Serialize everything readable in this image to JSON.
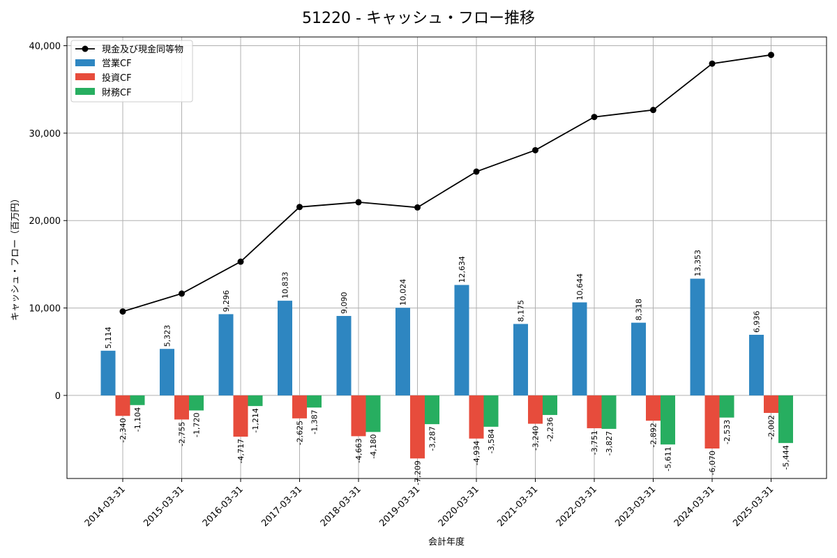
{
  "chart_data": {
    "type": "bar",
    "title": "51220 - キャッシュ・フロー推移",
    "xlabel": "会計年度",
    "ylabel": "キャッシュ・フロー（百万円）",
    "ylim": [
      -9500,
      41000
    ],
    "yticks": [
      0,
      10000,
      20000,
      30000,
      40000
    ],
    "ytick_labels": [
      "0",
      "10,000",
      "20,000",
      "30,000",
      "40,000"
    ],
    "grid": true,
    "legend": "top-left",
    "categories": [
      "2014-03-31",
      "2015-03-31",
      "2016-03-31",
      "2017-03-31",
      "2018-03-31",
      "2019-03-31",
      "2020-03-31",
      "2021-03-31",
      "2022-03-31",
      "2023-03-31",
      "2024-03-31",
      "2025-03-31"
    ],
    "series": [
      {
        "name": "営業CF",
        "kind": "bar",
        "color": "#2e86c1",
        "values": [
          5114,
          5323,
          9296,
          10833,
          9090,
          10024,
          12634,
          8175,
          10644,
          8318,
          13353,
          6936
        ],
        "labels": [
          "5,114",
          "5,323",
          "9,296",
          "10,833",
          "9,090",
          "10,024",
          "12,634",
          "8,175",
          "10,644",
          "8,318",
          "13,353",
          "6,936"
        ]
      },
      {
        "name": "投資CF",
        "kind": "bar",
        "color": "#e74c3c",
        "values": [
          -2340,
          -2755,
          -4717,
          -2625,
          -4663,
          -7209,
          -4934,
          -3240,
          -3751,
          -2892,
          -6070,
          -2002
        ],
        "labels": [
          "-2,340",
          "-2,755",
          "-4,717",
          "-2,625",
          "-4,663",
          "-7,209",
          "-4,934",
          "-3,240",
          "-3,751",
          "-2,892",
          "-6,070",
          "-2,002"
        ]
      },
      {
        "name": "財務CF",
        "kind": "bar",
        "color": "#27ae60",
        "values": [
          -1104,
          -1720,
          -1214,
          -1387,
          -4180,
          -3287,
          -3584,
          -2236,
          -3827,
          -5611,
          -2533,
          -5444
        ],
        "labels": [
          "-1,104",
          "-1,720",
          "-1,214",
          "-1,387",
          "-4,180",
          "-3,287",
          "-3,584",
          "-2,236",
          "-3,827",
          "-5,611",
          "-2,533",
          "-5,444"
        ]
      },
      {
        "name": "現金及び現金同等物",
        "kind": "line",
        "color": "#000000",
        "values": [
          9600,
          11650,
          15300,
          21550,
          22100,
          21500,
          25600,
          28050,
          31850,
          32650,
          37950,
          38950
        ]
      }
    ]
  }
}
